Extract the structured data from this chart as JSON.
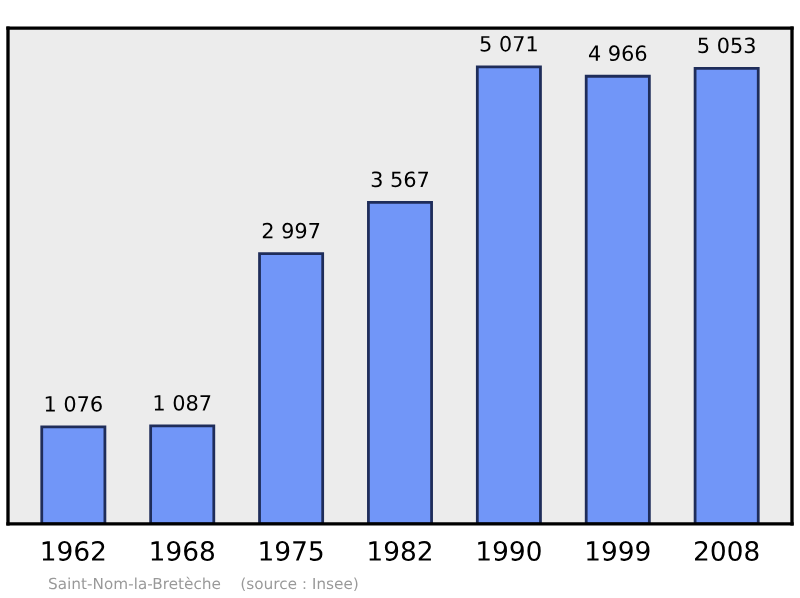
{
  "chart_data": {
    "type": "bar",
    "categories": [
      "1962",
      "1968",
      "1975",
      "1982",
      "1990",
      "1999",
      "2008"
    ],
    "values": [
      1076,
      1087,
      2997,
      3567,
      5071,
      4966,
      5053
    ],
    "value_labels": [
      "1 076",
      "1 087",
      "2 997",
      "3 567",
      "5 071",
      "4 966",
      "5 053"
    ],
    "color": "#7196f8",
    "ylim": [
      0,
      5500
    ],
    "tick_labels": "x",
    "grid": false,
    "annotations": [
      "Saint-Nom-la-Bretèche    (source : Insee)"
    ]
  }
}
